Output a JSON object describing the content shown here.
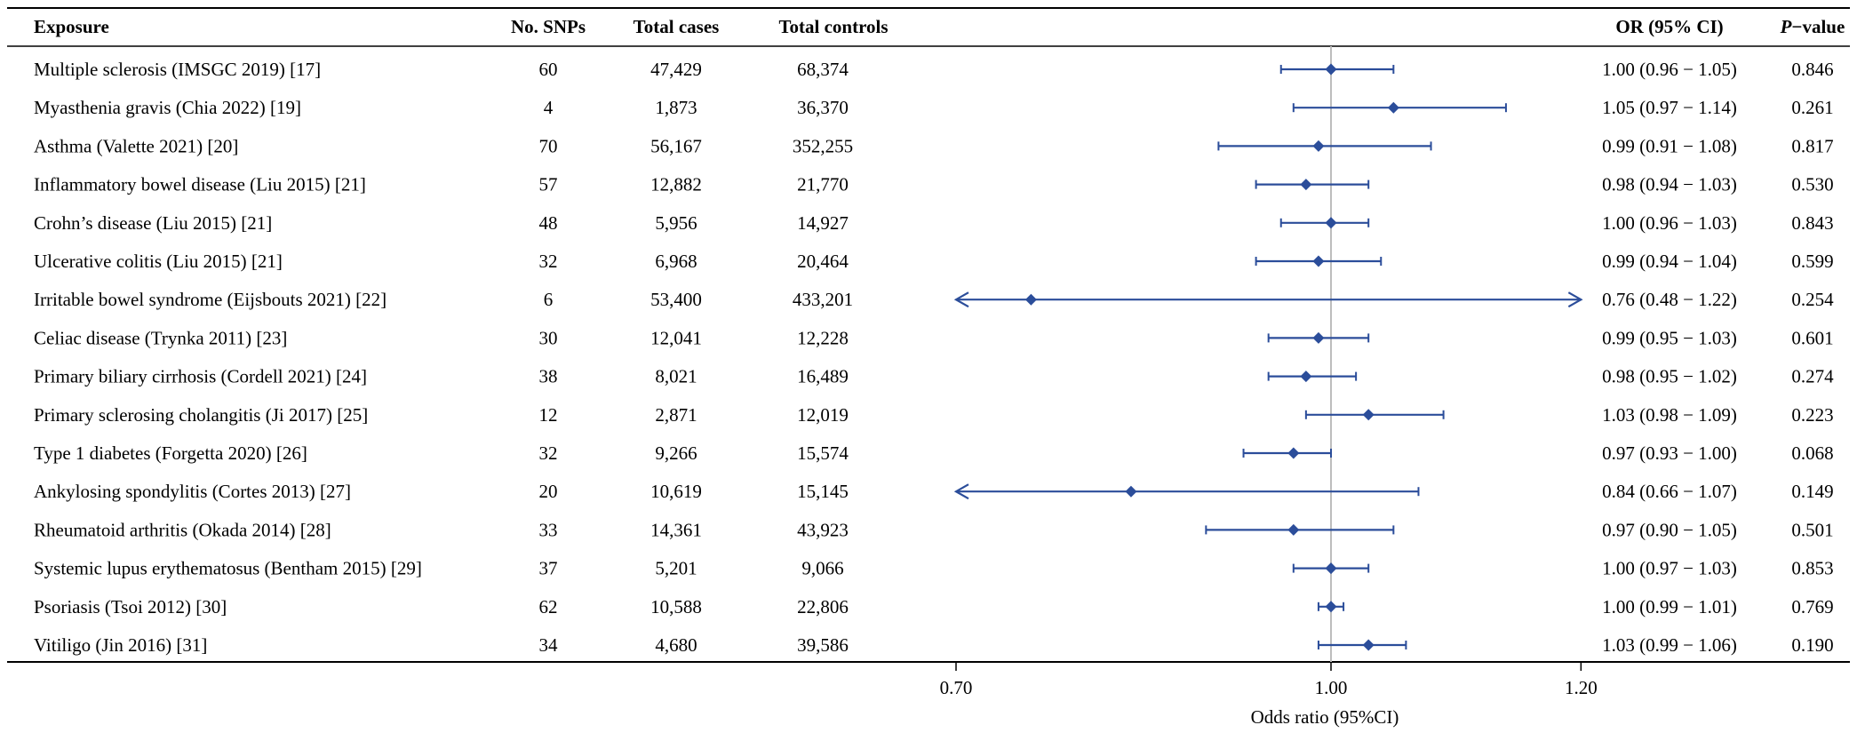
{
  "colors": {
    "marker": "#2b4d9a",
    "reference_line": "#bdbdbd",
    "rule": "#000000",
    "text": "#000000"
  },
  "header": {
    "exposure": "Exposure",
    "snps": "No. SNPs",
    "cases": "Total cases",
    "controls": "Total controls",
    "or_ci": "OR (95% CI)",
    "p_prefix": "P",
    "p_suffix": "−value"
  },
  "chart_data": {
    "type": "forest",
    "xlabel": "Odds ratio (95%CI)",
    "xlim": [
      0.7,
      1.2
    ],
    "reference": 1.0,
    "ticks": [
      0.7,
      1.0,
      1.2
    ],
    "tick_labels": [
      "0.70",
      "1.00",
      "1.20"
    ],
    "rows": [
      {
        "exposure": "Multiple sclerosis (IMSGC 2019) [17]",
        "snps": "60",
        "cases": "47,429",
        "controls": "68,374",
        "or": 1.0,
        "lower": 0.96,
        "upper": 1.05,
        "or_ci": "1.00 (0.96 − 1.05)",
        "p": "0.846"
      },
      {
        "exposure": "Myasthenia gravis (Chia 2022) [19]",
        "snps": "4",
        "cases": "1,873",
        "controls": "36,370",
        "or": 1.05,
        "lower": 0.97,
        "upper": 1.14,
        "or_ci": "1.05 (0.97 − 1.14)",
        "p": "0.261"
      },
      {
        "exposure": "Asthma (Valette 2021) [20]",
        "snps": "70",
        "cases": "56,167",
        "controls": "352,255",
        "or": 0.99,
        "lower": 0.91,
        "upper": 1.08,
        "or_ci": "0.99 (0.91 − 1.08)",
        "p": "0.817"
      },
      {
        "exposure": "Inflammatory bowel disease (Liu 2015) [21]",
        "snps": "57",
        "cases": "12,882",
        "controls": "21,770",
        "or": 0.98,
        "lower": 0.94,
        "upper": 1.03,
        "or_ci": "0.98 (0.94 − 1.03)",
        "p": "0.530"
      },
      {
        "exposure": "Crohn’s disease (Liu 2015) [21]",
        "snps": "48",
        "cases": "5,956",
        "controls": "14,927",
        "or": 1.0,
        "lower": 0.96,
        "upper": 1.03,
        "or_ci": "1.00 (0.96 − 1.03)",
        "p": "0.843"
      },
      {
        "exposure": "Ulcerative colitis (Liu 2015) [21]",
        "snps": "32",
        "cases": "6,968",
        "controls": "20,464",
        "or": 0.99,
        "lower": 0.94,
        "upper": 1.04,
        "or_ci": "0.99 (0.94 − 1.04)",
        "p": "0.599"
      },
      {
        "exposure": "Irritable bowel syndrome (Eijsbouts 2021) [22]",
        "snps": "6",
        "cases": "53,400",
        "controls": "433,201",
        "or": 0.76,
        "lower": 0.48,
        "upper": 1.22,
        "or_ci": "0.76 (0.48 − 1.22)",
        "p": "0.254"
      },
      {
        "exposure": "Celiac disease (Trynka 2011) [23]",
        "snps": "30",
        "cases": "12,041",
        "controls": "12,228",
        "or": 0.99,
        "lower": 0.95,
        "upper": 1.03,
        "or_ci": "0.99 (0.95 − 1.03)",
        "p": "0.601"
      },
      {
        "exposure": "Primary biliary cirrhosis (Cordell 2021) [24]",
        "snps": "38",
        "cases": "8,021",
        "controls": "16,489",
        "or": 0.98,
        "lower": 0.95,
        "upper": 1.02,
        "or_ci": "0.98 (0.95 − 1.02)",
        "p": "0.274"
      },
      {
        "exposure": "Primary sclerosing cholangitis (Ji 2017) [25]",
        "snps": "12",
        "cases": "2,871",
        "controls": "12,019",
        "or": 1.03,
        "lower": 0.98,
        "upper": 1.09,
        "or_ci": "1.03 (0.98 − 1.09)",
        "p": "0.223"
      },
      {
        "exposure": "Type 1 diabetes (Forgetta 2020) [26]",
        "snps": "32",
        "cases": "9,266",
        "controls": "15,574",
        "or": 0.97,
        "lower": 0.93,
        "upper": 1.0,
        "or_ci": "0.97 (0.93 − 1.00)",
        "p": "0.068"
      },
      {
        "exposure": "Ankylosing spondylitis (Cortes 2013) [27]",
        "snps": "20",
        "cases": "10,619",
        "controls": "15,145",
        "or": 0.84,
        "lower": 0.66,
        "upper": 1.07,
        "or_ci": "0.84 (0.66 − 1.07)",
        "p": "0.149"
      },
      {
        "exposure": "Rheumatoid arthritis (Okada 2014) [28]",
        "snps": "33",
        "cases": "14,361",
        "controls": "43,923",
        "or": 0.97,
        "lower": 0.9,
        "upper": 1.05,
        "or_ci": "0.97 (0.90 − 1.05)",
        "p": "0.501"
      },
      {
        "exposure": "Systemic lupus erythematosus (Bentham 2015) [29]",
        "snps": "37",
        "cases": "5,201",
        "controls": "9,066",
        "or": 1.0,
        "lower": 0.97,
        "upper": 1.03,
        "or_ci": "1.00 (0.97 − 1.03)",
        "p": "0.853"
      },
      {
        "exposure": "Psoriasis (Tsoi 2012) [30]",
        "snps": "62",
        "cases": "10,588",
        "controls": "22,806",
        "or": 1.0,
        "lower": 0.99,
        "upper": 1.01,
        "or_ci": "1.00 (0.99 − 1.01)",
        "p": "0.769"
      },
      {
        "exposure": "Vitiligo (Jin 2016) [31]",
        "snps": "34",
        "cases": "4,680",
        "controls": "39,586",
        "or": 1.03,
        "lower": 0.99,
        "upper": 1.06,
        "or_ci": "1.03 (0.99 − 1.06)",
        "p": "0.190"
      }
    ]
  }
}
